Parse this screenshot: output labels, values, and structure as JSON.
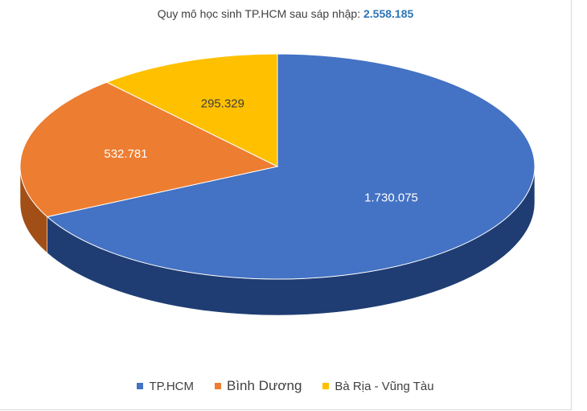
{
  "chart_data": {
    "type": "pie",
    "title_prefix": "Quy mô học sinh TP.HCM sau sáp nhập:",
    "title_total": "2.558.185",
    "legend_position": "bottom",
    "slices": [
      {
        "name": "TP.HCM",
        "value": 1730075,
        "label": "1.730.075",
        "color": "#4472c4",
        "side": "#1f3d73",
        "text_color": "#ffffff"
      },
      {
        "name": "Bình Dương",
        "value": 532781,
        "label": "532.781",
        "color": "#ed7d31",
        "side": "#a14f17",
        "text_color": "#ffffff"
      },
      {
        "name": "Bà Rịa - Vũng Tàu",
        "value": 295329,
        "label": "295.329",
        "color": "#ffc000",
        "side": "#b38600",
        "text_color": "#404040"
      }
    ]
  }
}
